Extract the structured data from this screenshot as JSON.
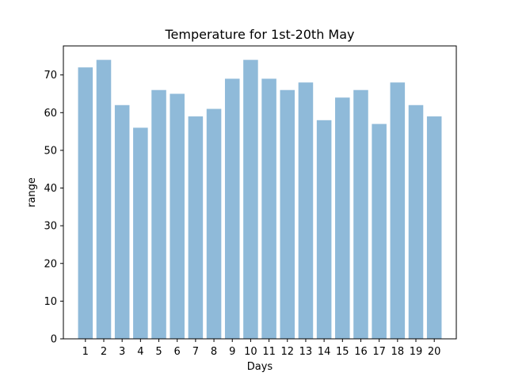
{
  "chart_data": {
    "type": "bar",
    "title": "Temperature for 1st-20th May",
    "xlabel": "Days",
    "ylabel": "range",
    "categories": [
      "1",
      "2",
      "3",
      "4",
      "5",
      "6",
      "7",
      "8",
      "9",
      "10",
      "11",
      "12",
      "13",
      "14",
      "15",
      "16",
      "17",
      "18",
      "19",
      "20"
    ],
    "values": [
      72,
      74,
      62,
      56,
      66,
      65,
      59,
      61,
      69,
      74,
      69,
      66,
      68,
      58,
      64,
      66,
      57,
      68,
      62,
      59
    ],
    "ylim": [
      0,
      77.7
    ],
    "yticks": [
      0,
      10,
      20,
      30,
      40,
      50,
      60,
      70
    ],
    "bar_color": "#8fbad9",
    "grid": false
  }
}
